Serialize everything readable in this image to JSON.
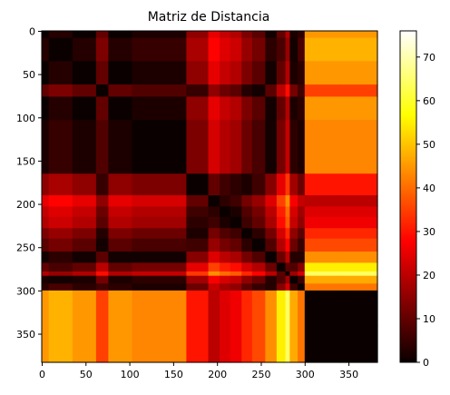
{
  "chart_data": {
    "type": "heatmap",
    "title": "Matriz de Distancia",
    "colormap": "hot",
    "xlim": [
      0,
      383
    ],
    "ylim": [
      0,
      383
    ],
    "x_ticks": [
      0,
      50,
      100,
      150,
      200,
      250,
      300,
      350
    ],
    "y_ticks": [
      0,
      50,
      100,
      150,
      200,
      250,
      300,
      350
    ],
    "colorbar": {
      "min": 0,
      "max": 76,
      "ticks": [
        0,
        10,
        20,
        30,
        40,
        50,
        60,
        70
      ]
    },
    "matrix_size": 383,
    "block_boundaries": [
      0,
      8,
      35,
      62,
      76,
      103,
      165,
      190,
      203,
      215,
      228,
      240,
      255,
      268,
      278,
      283,
      292,
      300,
      340,
      383
    ],
    "block_profile": [
      19,
      16,
      19,
      29,
      19,
      21,
      34,
      44,
      40,
      38,
      32,
      28,
      20,
      9,
      0,
      17,
      23,
      64,
      64
    ],
    "xlabel": "",
    "ylabel": ""
  }
}
